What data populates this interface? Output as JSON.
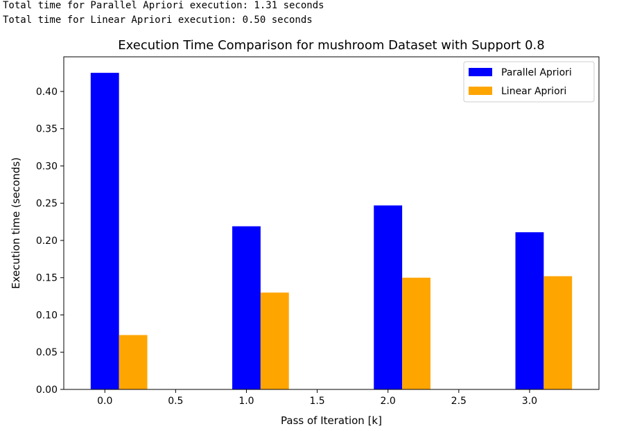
{
  "output": {
    "line1": "Total time for Parallel Apriori execution: 1.31 seconds",
    "line2": "Total time for Linear Apriori execution: 0.50 seconds"
  },
  "chart_data": {
    "type": "bar",
    "title": "Execution Time Comparison for mushroom Dataset with Support 0.8",
    "xlabel": "Pass of Iteration [k]",
    "ylabel": "Execution time (seconds)",
    "x": [
      0,
      1,
      2,
      3
    ],
    "bar_width": 0.2,
    "series": [
      {
        "name": "Parallel Apriori",
        "color": "#0000ff",
        "offset": 0,
        "values": [
          0.425,
          0.219,
          0.247,
          0.211
        ]
      },
      {
        "name": "Linear Apriori",
        "color": "#ffa500",
        "offset": 0.2,
        "values": [
          0.073,
          0.13,
          0.15,
          0.152
        ]
      }
    ],
    "xlim": [
      -0.29,
      3.49
    ],
    "ylim": [
      0,
      0.4465
    ],
    "xticks": [
      0.0,
      0.5,
      1.0,
      1.5,
      2.0,
      2.5,
      3.0
    ],
    "xtick_labels": [
      "0.0",
      "0.5",
      "1.0",
      "1.5",
      "2.0",
      "2.5",
      "3.0"
    ],
    "yticks": [
      0.0,
      0.05,
      0.1,
      0.15,
      0.2,
      0.25,
      0.3,
      0.35,
      0.4
    ],
    "ytick_labels": [
      "0.00",
      "0.05",
      "0.10",
      "0.15",
      "0.20",
      "0.25",
      "0.30",
      "0.35",
      "0.40"
    ],
    "grid": false,
    "legend_position": "top-right"
  }
}
